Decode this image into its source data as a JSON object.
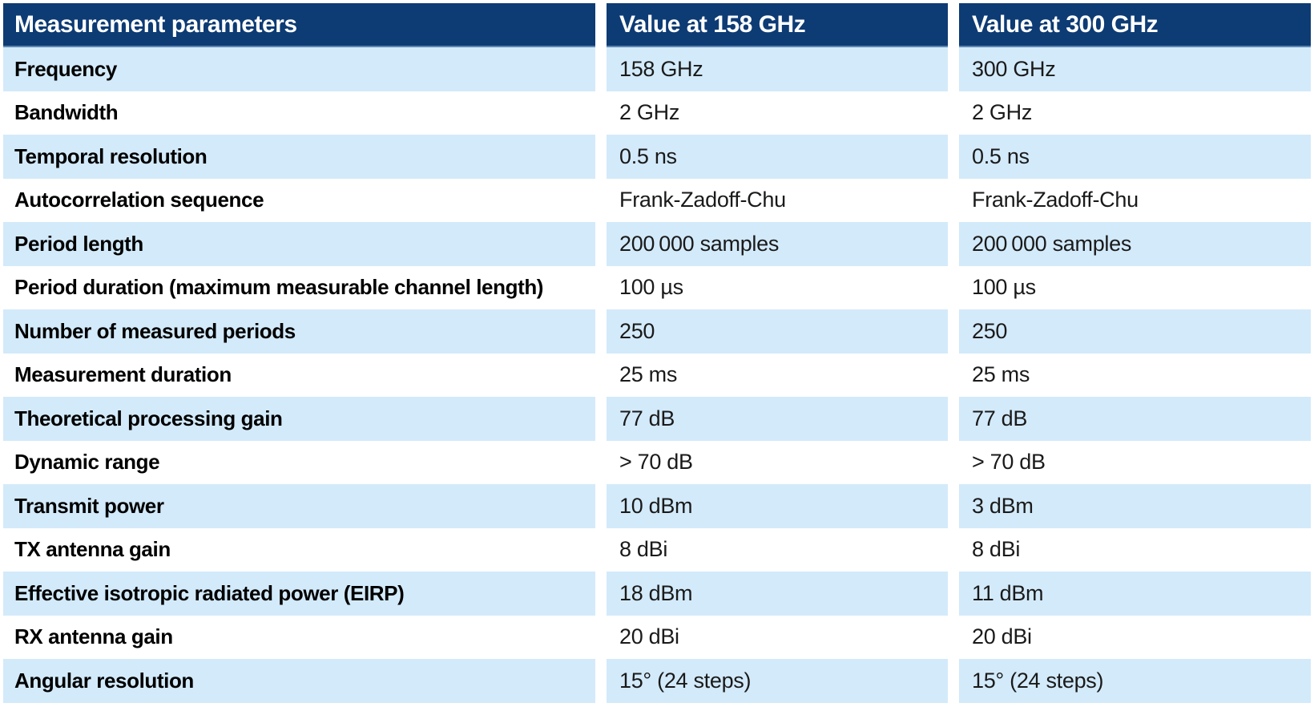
{
  "colors": {
    "header_background": "#0d3b74",
    "header_text": "#ffffff",
    "header_underline": "#5d86b1",
    "row_highlight_blue": "#d3eafa",
    "row_white": "#ffffff",
    "label_text": "#000000",
    "value_text": "#1a1a1a"
  },
  "table": {
    "columns": [
      {
        "label": "Measurement parameters"
      },
      {
        "label": "Value at 158 GHz"
      },
      {
        "label": "Value at 300 GHz"
      }
    ],
    "rows": [
      {
        "param": "Frequency",
        "v158": "158 GHz",
        "v300": "300 GHz"
      },
      {
        "param": "Bandwidth",
        "v158": "2 GHz",
        "v300": "2 GHz"
      },
      {
        "param": "Temporal resolution",
        "v158": "0.5 ns",
        "v300": "0.5 ns"
      },
      {
        "param": "Autocorrelation sequence",
        "v158": "Frank-Zadoff-Chu",
        "v300": "Frank-Zadoff-Chu"
      },
      {
        "param": "Period length",
        "v158": "200 000 samples",
        "v300": "200 000 samples"
      },
      {
        "param": "Period duration (maximum measurable channel length)",
        "v158": "100 µs",
        "v300": "100 µs"
      },
      {
        "param": "Number of measured periods",
        "v158": "250",
        "v300": "250"
      },
      {
        "param": "Measurement duration",
        "v158": "25 ms",
        "v300": "25 ms"
      },
      {
        "param": "Theoretical processing gain",
        "v158": "77 dB",
        "v300": "77 dB"
      },
      {
        "param": "Dynamic range",
        "v158": "> 70 dB",
        "v300": "> 70 dB"
      },
      {
        "param": "Transmit power",
        "v158": "10 dBm",
        "v300": "3 dBm"
      },
      {
        "param": "TX antenna gain",
        "v158": "8 dBi",
        "v300": "8 dBi"
      },
      {
        "param": "Effective isotropic radiated power (EIRP)",
        "v158": "18 dBm",
        "v300": "11 dBm"
      },
      {
        "param": "RX antenna gain",
        "v158": "20 dBi",
        "v300": "20 dBi"
      },
      {
        "param": "Angular resolution",
        "v158": "15° (24 steps)",
        "v300": "15° (24 steps)"
      }
    ]
  }
}
